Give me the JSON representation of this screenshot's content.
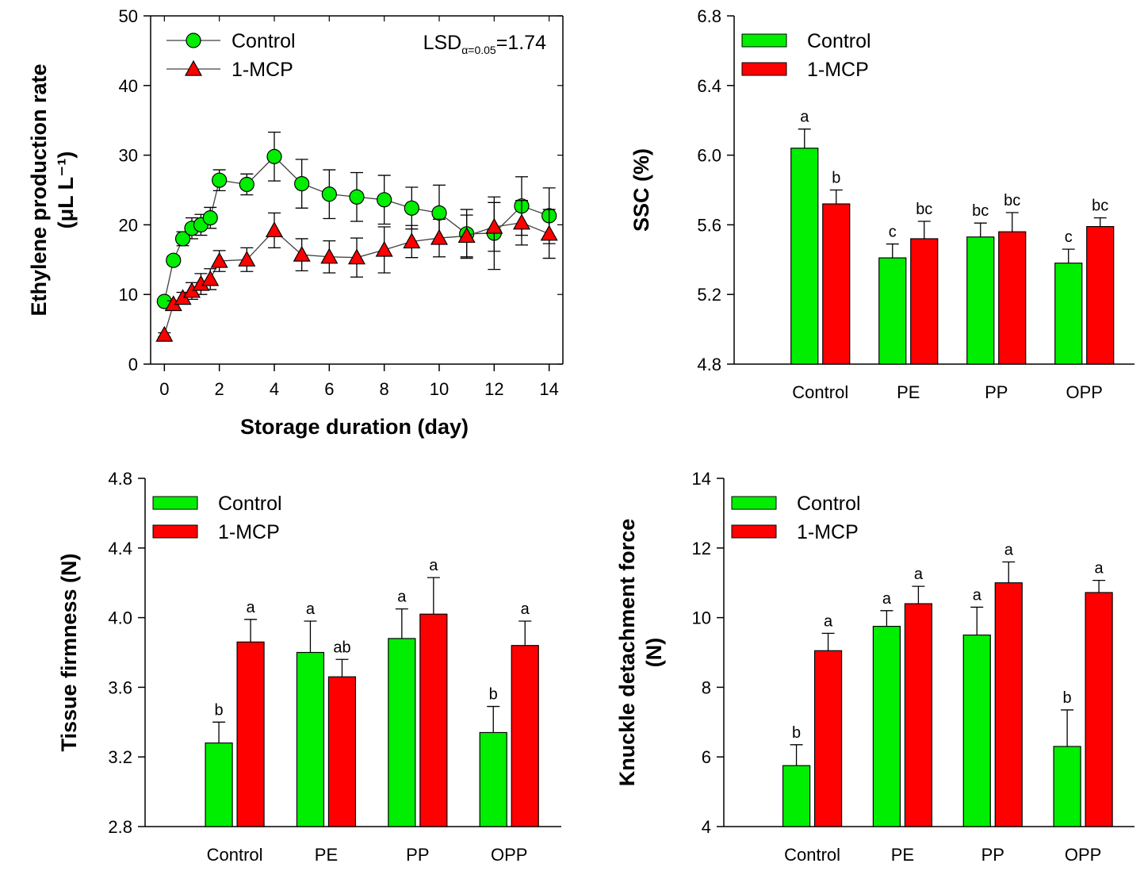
{
  "colors": {
    "control": "#00ee00",
    "mcp": "#ff0000",
    "axis": "#000000",
    "line": "#404040"
  },
  "chart_data": [
    {
      "id": "ethylene",
      "type": "line",
      "title": "",
      "xlabel": "Storage duration (day)",
      "ylabel": "Ethylene production rate",
      "ylabel_unit": "(μL L⁻¹)",
      "xlim": [
        -0.5,
        14.5
      ],
      "ylim": [
        0,
        50
      ],
      "xticks": [
        0,
        2,
        4,
        6,
        8,
        10,
        12,
        14
      ],
      "yticks": [
        0,
        10,
        20,
        30,
        40,
        50
      ],
      "annotation": {
        "prefix": "LSD",
        "subscript": "α=0.05",
        "suffix": "=1.74"
      },
      "legend_position": "top-left",
      "series": [
        {
          "name": "Control",
          "marker": "circle",
          "color_key": "control",
          "x": [
            0,
            0.33,
            0.67,
            1,
            1.33,
            1.67,
            2,
            3,
            4,
            5,
            6,
            7,
            8,
            9,
            10,
            11,
            12,
            13,
            14
          ],
          "y": [
            9.0,
            14.9,
            18.0,
            19.5,
            20.0,
            21.0,
            26.4,
            25.8,
            29.8,
            25.9,
            24.4,
            24.0,
            23.6,
            22.4,
            21.7,
            18.7,
            18.8,
            22.7,
            21.3
          ],
          "err": [
            0.5,
            0.6,
            1.0,
            1.5,
            1.5,
            1.5,
            1.5,
            1.5,
            3.5,
            3.5,
            3.5,
            3.5,
            3.5,
            3.0,
            4.0,
            3.5,
            5.2,
            4.2,
            4.0
          ]
        },
        {
          "name": "1-MCP",
          "marker": "triangle",
          "color_key": "mcp",
          "x": [
            0,
            0.33,
            0.67,
            1,
            1.33,
            1.67,
            2,
            3,
            4,
            5,
            6,
            7,
            8,
            9,
            10,
            11,
            12,
            13,
            14
          ],
          "y": [
            4.2,
            8.6,
            9.5,
            10.5,
            11.5,
            12.2,
            14.8,
            15.0,
            19.2,
            15.7,
            15.4,
            15.3,
            16.4,
            17.6,
            18.1,
            18.4,
            19.7,
            20.3,
            18.7
          ],
          "err": [
            0.3,
            0.5,
            0.8,
            1.2,
            1.5,
            1.5,
            1.5,
            1.7,
            2.5,
            2.3,
            2.3,
            2.8,
            3.3,
            2.3,
            2.7,
            3.0,
            3.5,
            3.2,
            3.5
          ]
        }
      ]
    },
    {
      "id": "ssc",
      "type": "bar",
      "title": "",
      "xlabel": "",
      "ylabel": "SSC (%)",
      "ylabel_unit": "",
      "ylim": [
        4.8,
        6.8
      ],
      "yticks": [
        "4.8",
        "5.2",
        "5.6",
        "6.0",
        "6.4",
        "6.8"
      ],
      "categories": [
        "Control",
        "PE",
        "PP",
        "OPP"
      ],
      "legend_position": "top-left",
      "series": [
        {
          "name": "Control",
          "color_key": "control",
          "values": [
            6.04,
            5.41,
            5.53,
            5.38
          ],
          "err": [
            0.11,
            0.08,
            0.08,
            0.08
          ],
          "labels": [
            "a",
            "c",
            "bc",
            "c"
          ]
        },
        {
          "name": "1-MCP",
          "color_key": "mcp",
          "values": [
            5.72,
            5.52,
            5.56,
            5.59
          ],
          "err": [
            0.08,
            0.1,
            0.11,
            0.05
          ],
          "labels": [
            "b",
            "bc",
            "bc",
            "bc"
          ]
        }
      ]
    },
    {
      "id": "firmness",
      "type": "bar",
      "title": "",
      "xlabel": "",
      "ylabel": "Tissue firmness (N)",
      "ylabel_unit": "",
      "ylim": [
        2.8,
        4.8
      ],
      "yticks": [
        "2.8",
        "3.2",
        "3.6",
        "4.0",
        "4.4",
        "4.8"
      ],
      "categories": [
        "Control",
        "PE",
        "PP",
        "OPP"
      ],
      "legend_position": "top-left",
      "series": [
        {
          "name": "Control",
          "color_key": "control",
          "values": [
            3.28,
            3.8,
            3.88,
            3.34
          ],
          "err": [
            0.12,
            0.18,
            0.17,
            0.15
          ],
          "labels": [
            "b",
            "a",
            "a",
            "b"
          ]
        },
        {
          "name": "1-MCP",
          "color_key": "mcp",
          "values": [
            3.86,
            3.66,
            4.02,
            3.84
          ],
          "err": [
            0.13,
            0.1,
            0.21,
            0.14
          ],
          "labels": [
            "a",
            "ab",
            "a",
            "a"
          ]
        }
      ]
    },
    {
      "id": "knuckle",
      "type": "bar",
      "title": "",
      "xlabel": "",
      "ylabel": "Knuckle detachment force",
      "ylabel_unit": "(N)",
      "ylim": [
        4,
        14
      ],
      "yticks": [
        "4",
        "6",
        "8",
        "10",
        "12",
        "14"
      ],
      "categories": [
        "Control",
        "PE",
        "PP",
        "OPP"
      ],
      "legend_position": "top-left",
      "series": [
        {
          "name": "Control",
          "color_key": "control",
          "values": [
            5.75,
            9.75,
            9.5,
            6.3
          ],
          "err": [
            0.6,
            0.45,
            0.8,
            1.05
          ],
          "labels": [
            "b",
            "a",
            "a",
            "b"
          ]
        },
        {
          "name": "1-MCP",
          "color_key": "mcp",
          "values": [
            9.05,
            10.4,
            11.0,
            10.72
          ],
          "err": [
            0.5,
            0.5,
            0.6,
            0.35
          ],
          "labels": [
            "a",
            "a",
            "a",
            "a"
          ]
        }
      ]
    }
  ]
}
